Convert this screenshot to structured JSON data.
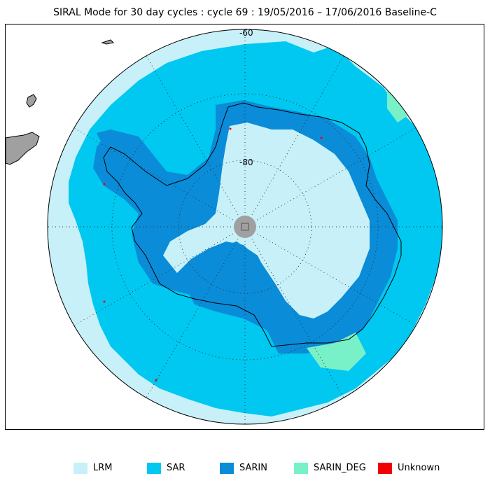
{
  "title": "SIRAL Mode for 30 day cycles : cycle 69 : 19/05/2016 – 17/06/2016 Baseline-C",
  "map": {
    "projection": "south-polar-stereographic",
    "latitude_labels": [
      "-60",
      "-80"
    ],
    "colors": {
      "LRM": "#c8f0f8",
      "SAR": "#00c8f0",
      "SARIN": "#0a8cd8",
      "SARIN_DEG": "#78f0c8",
      "Unknown": "#f00000",
      "land_outside": "#a0a0a0",
      "pole_hole": "#a0a0a0",
      "graticule": "#303030",
      "coastline": "#000000"
    }
  },
  "legend": [
    {
      "label": "LRM",
      "color": "#c8f0f8"
    },
    {
      "label": "SAR",
      "color": "#00c8f0"
    },
    {
      "label": "SARIN",
      "color": "#0a8cd8"
    },
    {
      "label": "SARIN_DEG",
      "color": "#78f0c8"
    },
    {
      "label": "Unknown",
      "color": "#f00000"
    }
  ]
}
